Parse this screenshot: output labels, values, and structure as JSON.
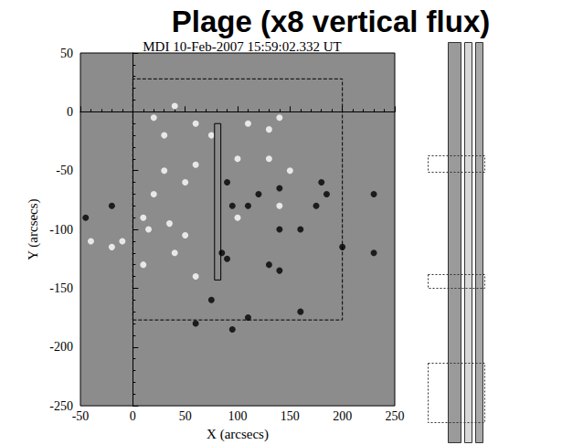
{
  "chart_data": {
    "type": "scatter",
    "title": "Plage (x8 vertical flux)",
    "subtitle": "MDI 10-Feb-2007 15:59:02.332 UT",
    "x_label": "X (arcsecs)",
    "y_label": "Y (arcsecs)",
    "xlim": [
      -50,
      250
    ],
    "ylim": [
      -250,
      50
    ],
    "xticks": [
      -50,
      0,
      50,
      100,
      150,
      200,
      250
    ],
    "yticks": [
      -250,
      -200,
      -150,
      -100,
      -50,
      0,
      50
    ],
    "grid": false,
    "series": [
      {
        "color": "#ffffff",
        "marker": "circle",
        "values": [
          [
            20,
            -5
          ],
          [
            30,
            -20
          ],
          [
            40,
            5
          ],
          [
            60,
            -10
          ],
          [
            75,
            -20
          ],
          [
            110,
            -10
          ],
          [
            130,
            -15
          ],
          [
            140,
            -5
          ],
          [
            100,
            -40
          ],
          [
            130,
            -40
          ],
          [
            60,
            -45
          ],
          [
            30,
            -50
          ],
          [
            50,
            -60
          ],
          [
            20,
            -70
          ],
          [
            10,
            -90
          ],
          [
            15,
            -100
          ],
          [
            35,
            -95
          ],
          [
            50,
            -105
          ],
          [
            -10,
            -110
          ],
          [
            -20,
            -115
          ],
          [
            40,
            -120
          ],
          [
            60,
            -140
          ],
          [
            140,
            -80
          ],
          [
            150,
            -50
          ],
          [
            -40,
            -110
          ],
          [
            10,
            -130
          ],
          [
            100,
            -90
          ]
        ]
      },
      {
        "color": "#000000",
        "marker": "circle",
        "values": [
          [
            180,
            -60
          ],
          [
            185,
            -70
          ],
          [
            175,
            -80
          ],
          [
            140,
            -65
          ],
          [
            90,
            -60
          ],
          [
            95,
            -80
          ],
          [
            110,
            -80
          ],
          [
            120,
            -70
          ],
          [
            140,
            -100
          ],
          [
            160,
            -100
          ],
          [
            130,
            -130
          ],
          [
            140,
            -135
          ],
          [
            85,
            -120
          ],
          [
            90,
            -125
          ],
          [
            75,
            -160
          ],
          [
            110,
            -175
          ],
          [
            95,
            -185
          ],
          [
            230,
            -70
          ],
          [
            230,
            -120
          ],
          [
            -20,
            -80
          ],
          [
            -45,
            -90
          ],
          [
            200,
            -115
          ],
          [
            60,
            -180
          ],
          [
            160,
            -170
          ]
        ]
      }
    ],
    "boxes": [
      {
        "x": [
          0,
          200
        ],
        "y": [
          -177,
          28
        ],
        "color": "#000000",
        "line_style": "dashed"
      },
      {
        "x": [
          78,
          84
        ],
        "y": [
          -143,
          -10
        ],
        "color": "#000000",
        "line_style": "solid"
      }
    ]
  }
}
